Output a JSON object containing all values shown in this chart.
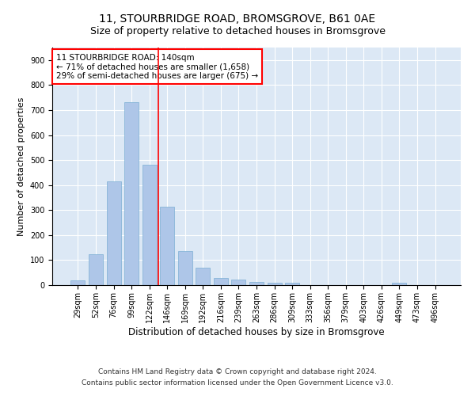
{
  "title": "11, STOURBRIDGE ROAD, BROMSGROVE, B61 0AE",
  "subtitle": "Size of property relative to detached houses in Bromsgrove",
  "xlabel": "Distribution of detached houses by size in Bromsgrove",
  "ylabel": "Number of detached properties",
  "categories": [
    "29sqm",
    "52sqm",
    "76sqm",
    "99sqm",
    "122sqm",
    "146sqm",
    "169sqm",
    "192sqm",
    "216sqm",
    "239sqm",
    "263sqm",
    "286sqm",
    "309sqm",
    "333sqm",
    "356sqm",
    "379sqm",
    "403sqm",
    "426sqm",
    "449sqm",
    "473sqm",
    "496sqm"
  ],
  "values": [
    20,
    125,
    415,
    730,
    480,
    315,
    135,
    70,
    30,
    22,
    12,
    10,
    8,
    0,
    0,
    0,
    0,
    0,
    10,
    0,
    0
  ],
  "bar_color": "#aec6e8",
  "bar_edgecolor": "#7bafd4",
  "vline_x": 4.5,
  "vline_color": "red",
  "annotation_text": "11 STOURBRIDGE ROAD: 140sqm\n← 71% of detached houses are smaller (1,658)\n29% of semi-detached houses are larger (675) →",
  "annotation_box_color": "white",
  "annotation_box_edgecolor": "red",
  "ylim": [
    0,
    950
  ],
  "yticks": [
    0,
    100,
    200,
    300,
    400,
    500,
    600,
    700,
    800,
    900
  ],
  "background_color": "#dce8f5",
  "footer_line1": "Contains HM Land Registry data © Crown copyright and database right 2024.",
  "footer_line2": "Contains public sector information licensed under the Open Government Licence v3.0.",
  "title_fontsize": 10,
  "subtitle_fontsize": 9,
  "xlabel_fontsize": 8.5,
  "ylabel_fontsize": 8,
  "tick_fontsize": 7,
  "annotation_fontsize": 7.5,
  "footer_fontsize": 6.5
}
